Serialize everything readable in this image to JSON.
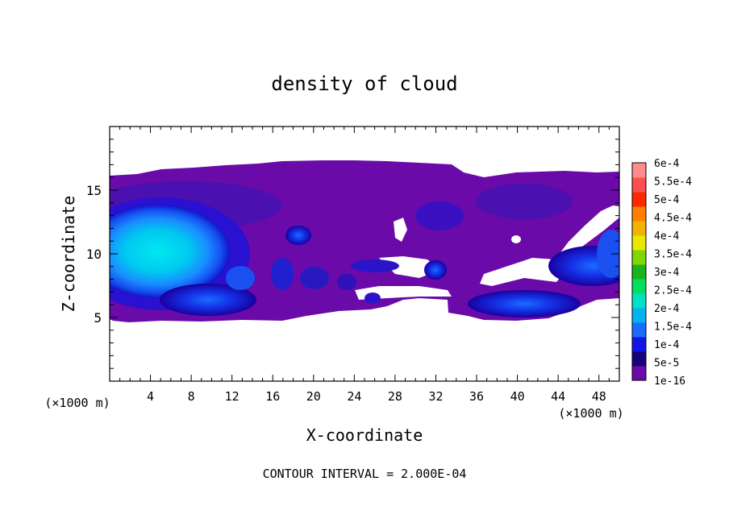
{
  "chart_data": {
    "type": "heatmap",
    "title": "density of cloud",
    "xlabel": "X-coordinate",
    "ylabel": "Z-coordinate",
    "x_unit_label": "(×1000 m)",
    "x_unit_label_right": "(×1000 m)",
    "xlim": [
      0,
      50
    ],
    "ylim": [
      0,
      20
    ],
    "x_ticks": [
      4,
      8,
      12,
      16,
      20,
      24,
      28,
      32,
      36,
      40,
      44,
      48
    ],
    "y_ticks": [
      5,
      10,
      15
    ],
    "colorbar": {
      "levels": [
        "1e-16",
        "5e-5",
        "1e-4",
        "1.5e-4",
        "2e-4",
        "2.5e-4",
        "3e-4",
        "3.5e-4",
        "4e-4",
        "4.5e-4",
        "5e-4",
        "5.5e-4",
        "6e-4"
      ],
      "colors": [
        "#6a0aa8",
        "#1a007a",
        "#1414e6",
        "#1a6cff",
        "#00b4f0",
        "#00e0c8",
        "#00e060",
        "#18b418",
        "#80d800",
        "#e8e800",
        "#f0b400",
        "#ff8000",
        "#ff2800",
        "#ff4e4e",
        "#ff8c8c"
      ]
    },
    "regions": [
      {
        "name": "cloud-envelope",
        "x": [
          0,
          50
        ],
        "z": [
          4.7,
          17
        ],
        "level": "1e-16"
      },
      {
        "name": "core-left",
        "center": [
          5,
          10
        ],
        "max_level": "2e-4"
      },
      {
        "name": "lower-band-left",
        "center": [
          10,
          6.5
        ],
        "max_level": "1.5e-4"
      },
      {
        "name": "lower-band-right",
        "center": [
          39,
          5.8
        ],
        "max_level": "1.5e-4"
      },
      {
        "name": "right-edge",
        "center": [
          48,
          9
        ],
        "max_level": "1e-4"
      }
    ],
    "grid": false
  },
  "footer": {
    "contour_interval": "CONTOUR INTERVAL = 2.000E-04"
  },
  "colors": {
    "background": "#ffffff",
    "axis": "#000000"
  }
}
